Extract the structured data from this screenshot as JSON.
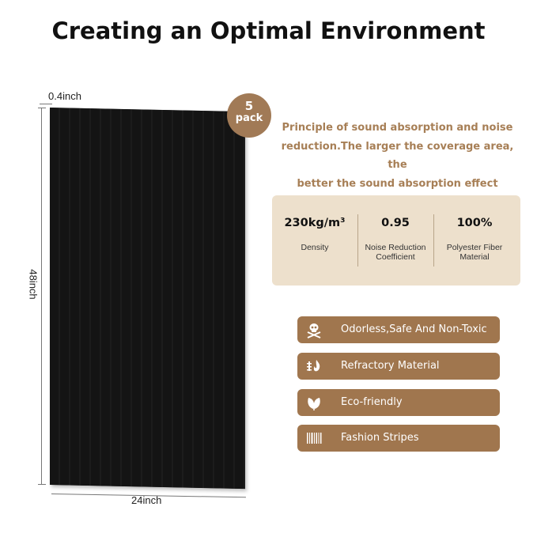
{
  "header": {
    "title": "Creating an Optimal Environment"
  },
  "dimensions": {
    "thickness": "0.4inch",
    "height": "48inch",
    "width": "24inch"
  },
  "badge": {
    "number": "5",
    "unit": "pack"
  },
  "principle": {
    "line1": "Principle of sound absorption and noise",
    "line2": "reduction.The larger the coverage area, the",
    "line3": "better the sound absorption effect"
  },
  "specs": [
    {
      "value": "230kg/m³",
      "label_line1": "Density",
      "label_line2": ""
    },
    {
      "value": "0.95",
      "label_line1": "Noise Reduction",
      "label_line2": "Coefficient"
    },
    {
      "value": "100%",
      "label_line1": "Polyester Fiber",
      "label_line2": "Material"
    }
  ],
  "features": [
    {
      "label": "Odorless,Safe And Non-Toxic",
      "icon": "skull-crossbones-icon"
    },
    {
      "label": "Refractory Material",
      "icon": "flame-shield-icon"
    },
    {
      "label": "Eco-friendly",
      "icon": "leaf-icon"
    },
    {
      "label": "Fashion Stripes",
      "icon": "stripes-icon"
    }
  ],
  "colors": {
    "accent_brown": "#a0764e",
    "text_brown": "#a77f56",
    "spec_panel": "#ede0cc",
    "panel_black": "#111111"
  }
}
